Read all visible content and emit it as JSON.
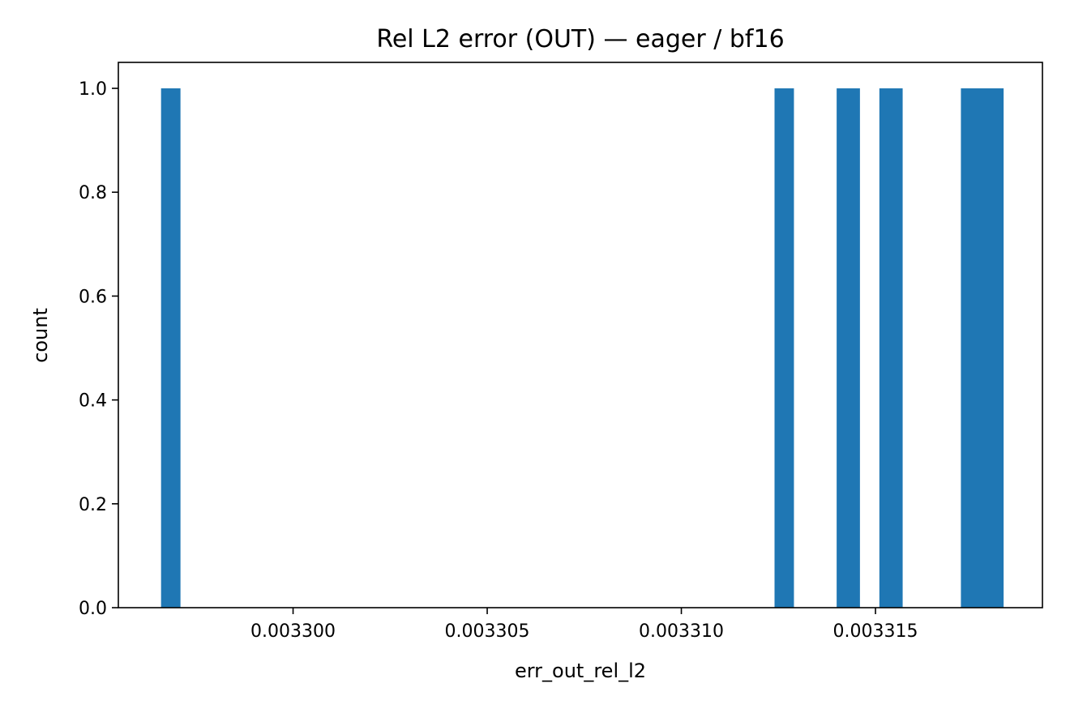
{
  "chart_data": {
    "type": "bar",
    "title": "Rel L2 error (OUT) — eager / bf16",
    "xlabel": "err_out_rel_l2",
    "ylabel": "count",
    "xlim": [
      0.0032955,
      0.0033193
    ],
    "ylim": [
      0.0,
      1.05
    ],
    "x_ticks": [
      {
        "value": 0.0033,
        "label": "0.003300"
      },
      {
        "value": 0.003305,
        "label": "0.003305"
      },
      {
        "value": 0.00331,
        "label": "0.003310"
      },
      {
        "value": 0.003315,
        "label": "0.003315"
      }
    ],
    "y_ticks": [
      {
        "value": 0.0,
        "label": "0.0"
      },
      {
        "value": 0.2,
        "label": "0.2"
      },
      {
        "value": 0.4,
        "label": "0.4"
      },
      {
        "value": 0.6,
        "label": "0.6"
      },
      {
        "value": 0.8,
        "label": "0.8"
      },
      {
        "value": 1.0,
        "label": "1.0"
      }
    ],
    "bins": [
      {
        "x0": 0.0032966,
        "x1": 0.0032971,
        "count": 1
      },
      {
        "x0": 0.0033124,
        "x1": 0.0033129,
        "count": 1
      },
      {
        "x0": 0.003314,
        "x1": 0.0033146,
        "count": 1
      },
      {
        "x0": 0.0033151,
        "x1": 0.0033157,
        "count": 1
      },
      {
        "x0": 0.0033172,
        "x1": 0.0033183,
        "count": 1
      }
    ],
    "color": "#1f77b4",
    "grid": false,
    "legend": "none"
  }
}
